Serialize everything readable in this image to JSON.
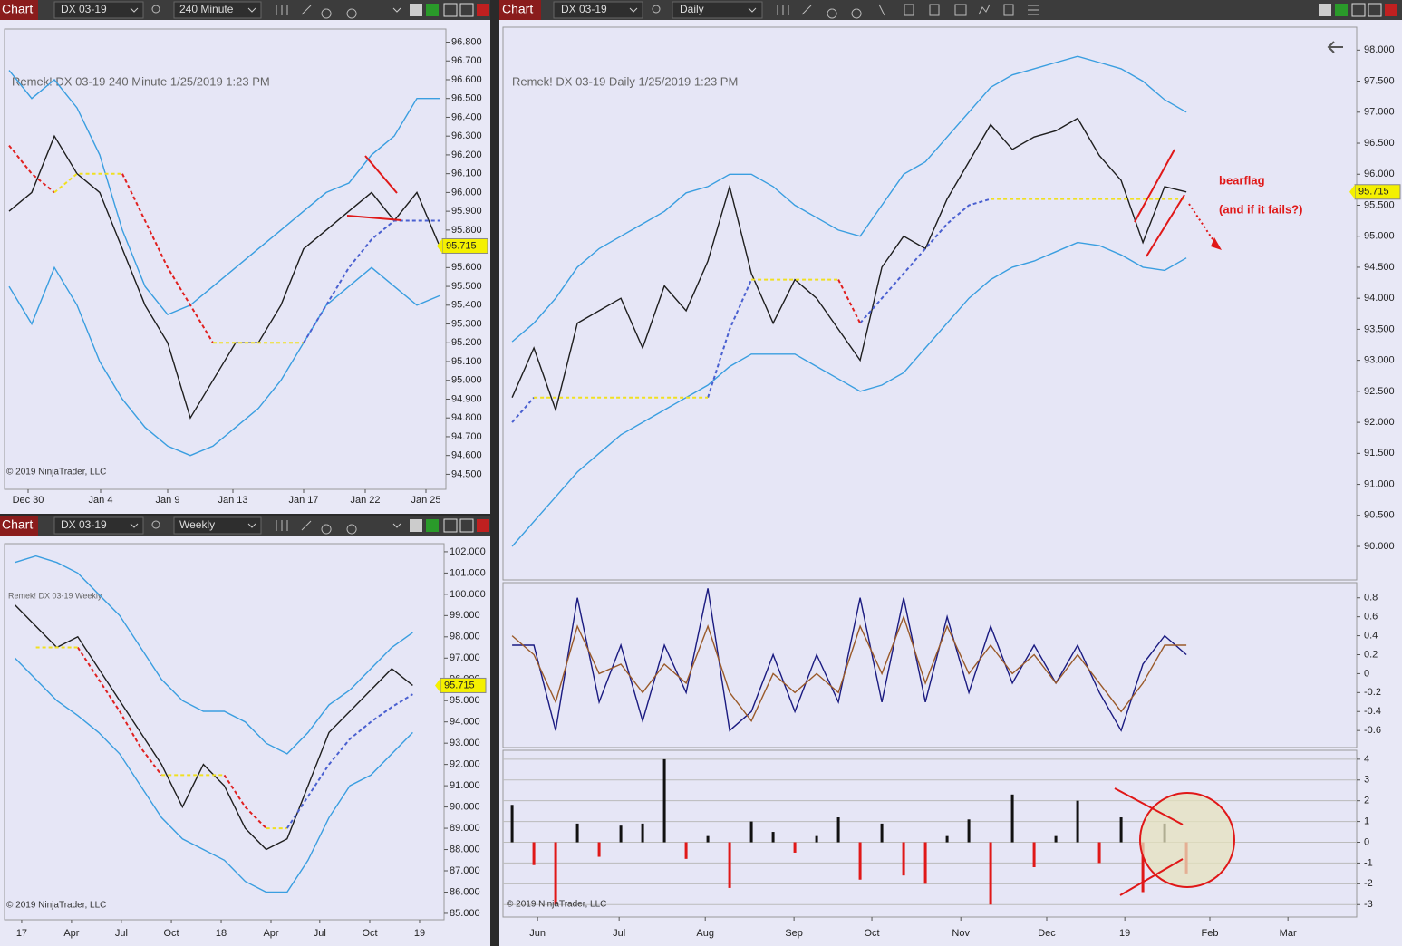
{
  "windows": [
    {
      "title": "Chart",
      "instrument": "DX 03-19",
      "interval": "240 Minute"
    },
    {
      "title": "Chart",
      "instrument": "DX 03-19",
      "interval": "Weekly"
    },
    {
      "title": "Chart",
      "instrument": "DX 03-19",
      "interval": "Daily"
    }
  ],
  "chart_data": [
    {
      "type": "line",
      "title": "Remek!  DX 03-19  240 Minute  1/25/2019 1:23 PM",
      "copyright": "© 2019 NinjaTrader, LLC",
      "xlim": [
        -0.2,
        19.28
      ],
      "ylim": [
        94.42,
        96.87
      ],
      "xticks": [
        {
          "value": 0.84,
          "label": "Dec 30"
        },
        {
          "value": 4.04,
          "label": "Jan 4"
        },
        {
          "value": 7,
          "label": "Jan 9"
        },
        {
          "value": 9.88,
          "label": "Jan 13"
        },
        {
          "value": 13,
          "label": "Jan 17"
        },
        {
          "value": 15.72,
          "label": "Jan 22"
        },
        {
          "value": 18.4,
          "label": "Jan 25"
        }
      ],
      "yticks": [
        {
          "value": 94.5,
          "label": "94.500"
        },
        {
          "value": 94.6,
          "label": "94.600"
        },
        {
          "value": 94.7,
          "label": "94.700"
        },
        {
          "value": 94.8,
          "label": "94.800"
        },
        {
          "value": 94.9,
          "label": "94.900"
        },
        {
          "value": 95.0,
          "label": "95.000"
        },
        {
          "value": 95.1,
          "label": "95.100"
        },
        {
          "value": 95.2,
          "label": "95.200"
        },
        {
          "value": 95.3,
          "label": "95.300"
        },
        {
          "value": 95.4,
          "label": "95.400"
        },
        {
          "value": 95.5,
          "label": "95.500"
        },
        {
          "value": 95.6,
          "label": "95.600"
        },
        {
          "value": 95.7,
          "label": "95.700"
        },
        {
          "value": 95.8,
          "label": "95.800"
        },
        {
          "value": 95.9,
          "label": "95.900"
        },
        {
          "value": 96.0,
          "label": "96.000"
        },
        {
          "value": 96.1,
          "label": "96.100"
        },
        {
          "value": 96.2,
          "label": "96.200"
        },
        {
          "value": 96.3,
          "label": "96.300"
        },
        {
          "value": 96.4,
          "label": "96.400"
        },
        {
          "value": 96.5,
          "label": "96.500"
        },
        {
          "value": 96.6,
          "label": "96.600"
        },
        {
          "value": 96.7,
          "label": "96.700"
        },
        {
          "value": 96.8,
          "label": "96.800"
        }
      ],
      "last_price": 95.715,
      "series": [
        {
          "color": "#1e1e1e",
          "values": [
            95.9,
            96.0,
            96.3,
            96.1,
            96.0,
            95.7,
            95.4,
            95.2,
            94.8,
            95.0,
            95.2,
            95.2,
            95.4,
            95.7,
            95.8,
            95.9,
            96.0,
            95.85,
            96.0,
            95.715
          ]
        },
        {
          "color": "#3a9ee0",
          "values": [
            96.65,
            96.5,
            96.6,
            96.45,
            96.2,
            95.8,
            95.5,
            95.35,
            95.4,
            95.5,
            95.6,
            95.7,
            95.8,
            95.9,
            96.0,
            96.05,
            96.2,
            96.3,
            96.5,
            96.5
          ]
        },
        {
          "color": "#3a9ee0",
          "values": [
            95.5,
            95.3,
            95.6,
            95.4,
            95.1,
            94.9,
            94.75,
            94.65,
            94.6,
            94.65,
            94.75,
            94.85,
            95.0,
            95.2,
            95.4,
            95.5,
            95.6,
            95.5,
            95.4,
            95.45
          ]
        },
        {
          "color": "#e02020",
          "dash": true,
          "values": [
            96.25,
            96.1,
            96.0,
            null,
            null,
            96.1,
            95.85,
            95.6,
            95.4,
            95.2,
            null,
            null,
            null,
            null,
            null,
            null,
            null,
            null,
            null,
            null
          ]
        },
        {
          "color": "#f0e020",
          "dash": true,
          "values": [
            null,
            null,
            96.0,
            96.1,
            96.1,
            96.1,
            null,
            null,
            null,
            95.2,
            95.2,
            95.2,
            95.2,
            95.2,
            null,
            null,
            null,
            null,
            null,
            null
          ]
        },
        {
          "color": "#4a60d0",
          "dash": true,
          "values": [
            null,
            null,
            null,
            null,
            null,
            null,
            null,
            null,
            null,
            null,
            null,
            null,
            null,
            95.2,
            95.4,
            95.6,
            95.75,
            95.85,
            95.85,
            95.85
          ]
        }
      ]
    },
    {
      "type": "line",
      "title": "Remek!  DX 03-19  Weekly",
      "copyright": "© 2019 NinjaTrader, LLC",
      "xlim": [
        -0.5,
        20.5
      ],
      "ylim": [
        84.7,
        102.38
      ],
      "xticks": [
        {
          "value": 0.32,
          "label": "17"
        },
        {
          "value": 2.7,
          "label": "Apr"
        },
        {
          "value": 5.08,
          "label": "Jul"
        },
        {
          "value": 7.47,
          "label": "Oct"
        },
        {
          "value": 9.85,
          "label": "18"
        },
        {
          "value": 12.23,
          "label": "Apr"
        },
        {
          "value": 14.56,
          "label": "Jul"
        },
        {
          "value": 16.95,
          "label": "Oct"
        },
        {
          "value": 19.33,
          "label": "19"
        }
      ],
      "yticks": [
        {
          "value": 85,
          "label": "85.000"
        },
        {
          "value": 86,
          "label": "86.000"
        },
        {
          "value": 87,
          "label": "87.000"
        },
        {
          "value": 88,
          "label": "88.000"
        },
        {
          "value": 89,
          "label": "89.000"
        },
        {
          "value": 90,
          "label": "90.000"
        },
        {
          "value": 91,
          "label": "91.000"
        },
        {
          "value": 92,
          "label": "92.000"
        },
        {
          "value": 93,
          "label": "93.000"
        },
        {
          "value": 94,
          "label": "94.000"
        },
        {
          "value": 95,
          "label": "95.000"
        },
        {
          "value": 96,
          "label": "96.000"
        },
        {
          "value": 97,
          "label": "97.000"
        },
        {
          "value": 98,
          "label": "98.000"
        },
        {
          "value": 99,
          "label": "99.000"
        },
        {
          "value": 100,
          "label": "100.000"
        },
        {
          "value": 101,
          "label": "101.000"
        },
        {
          "value": 102,
          "label": "102.000"
        }
      ],
      "last_price": 95.715,
      "series": [
        {
          "color": "#1e1e1e",
          "values": [
            99.5,
            98.5,
            97.5,
            98.0,
            96.5,
            95.0,
            93.5,
            92.0,
            90.0,
            92.0,
            91.0,
            89.0,
            88.0,
            88.5,
            91.0,
            93.5,
            94.5,
            95.5,
            96.5,
            95.715
          ]
        },
        {
          "color": "#3a9ee0",
          "values": [
            101.5,
            101.8,
            101.5,
            101.0,
            100.0,
            99.0,
            97.5,
            96.0,
            95.0,
            94.5,
            94.5,
            94.0,
            93.0,
            92.5,
            93.5,
            94.8,
            95.5,
            96.5,
            97.5,
            98.2
          ]
        },
        {
          "color": "#3a9ee0",
          "values": [
            97.0,
            96.0,
            95.0,
            94.3,
            93.5,
            92.5,
            91.0,
            89.5,
            88.5,
            88.0,
            87.5,
            86.5,
            86.0,
            86.0,
            87.5,
            89.5,
            91.0,
            91.5,
            92.5,
            93.5
          ]
        },
        {
          "color": "#e02020",
          "dash": true,
          "values": [
            null,
            null,
            null,
            97.5,
            96.0,
            94.5,
            92.8,
            91.5,
            null,
            null,
            91.5,
            90.0,
            89.0,
            null,
            null,
            null,
            null,
            null,
            null,
            null
          ]
        },
        {
          "color": "#f0e020",
          "dash": true,
          "values": [
            null,
            97.5,
            97.5,
            97.5,
            null,
            null,
            null,
            91.5,
            91.5,
            91.5,
            91.5,
            null,
            89.0,
            89.0,
            null,
            null,
            null,
            null,
            null,
            null
          ]
        },
        {
          "color": "#4a60d0",
          "dash": true,
          "values": [
            null,
            null,
            null,
            null,
            null,
            null,
            null,
            null,
            null,
            null,
            null,
            null,
            null,
            89.0,
            90.5,
            92.0,
            93.2,
            94.0,
            94.7,
            95.3
          ]
        }
      ]
    },
    {
      "type": "line",
      "title": "Remek!  DX 03-19  Daily  1/25/2019 1:23 PM",
      "xlim": [
        -0.42,
        38.83
      ],
      "ylim": [
        89.46,
        98.37
      ],
      "yticks": [
        {
          "value": 90,
          "label": "90.000"
        },
        {
          "value": 90.5,
          "label": "90.500"
        },
        {
          "value": 91,
          "label": "91.000"
        },
        {
          "value": 91.5,
          "label": "91.500"
        },
        {
          "value": 92,
          "label": "92.000"
        },
        {
          "value": 92.5,
          "label": "92.500"
        },
        {
          "value": 93,
          "label": "93.000"
        },
        {
          "value": 93.5,
          "label": "93.500"
        },
        {
          "value": 94,
          "label": "94.000"
        },
        {
          "value": 94.5,
          "label": "94.500"
        },
        {
          "value": 95,
          "label": "95.000"
        },
        {
          "value": 95.5,
          "label": "95.500"
        },
        {
          "value": 96,
          "label": "96.000"
        },
        {
          "value": 96.5,
          "label": "96.500"
        },
        {
          "value": 97,
          "label": "97.000"
        },
        {
          "value": 97.5,
          "label": "97.500"
        },
        {
          "value": 98,
          "label": "98.000"
        }
      ],
      "last_price": 95.715,
      "annotations": [
        "bearflag",
        "(and if it fails?)"
      ],
      "series": [
        {
          "color": "#1e1e1e",
          "values": [
            92.4,
            93.2,
            92.2,
            93.6,
            93.8,
            94.0,
            93.2,
            94.2,
            93.8,
            94.6,
            95.8,
            94.4,
            93.6,
            94.3,
            94.0,
            93.5,
            93.0,
            94.5,
            95.0,
            94.8,
            95.6,
            96.2,
            96.8,
            96.4,
            96.6,
            96.7,
            96.9,
            96.3,
            95.9,
            94.9,
            95.8,
            95.715
          ]
        },
        {
          "color": "#3a9ee0",
          "values": [
            93.3,
            93.6,
            94.0,
            94.5,
            94.8,
            95.0,
            95.2,
            95.4,
            95.7,
            95.8,
            96.0,
            96.0,
            95.8,
            95.5,
            95.3,
            95.1,
            95.0,
            95.5,
            96.0,
            96.2,
            96.6,
            97.0,
            97.4,
            97.6,
            97.7,
            97.8,
            97.9,
            97.8,
            97.7,
            97.5,
            97.2,
            97.0
          ]
        },
        {
          "color": "#3a9ee0",
          "values": [
            90.0,
            90.4,
            90.8,
            91.2,
            91.5,
            91.8,
            92.0,
            92.2,
            92.4,
            92.6,
            92.9,
            93.1,
            93.1,
            93.1,
            92.9,
            92.7,
            92.5,
            92.6,
            92.8,
            93.2,
            93.6,
            94.0,
            94.3,
            94.5,
            94.6,
            94.75,
            94.9,
            94.85,
            94.7,
            94.5,
            94.45,
            94.65
          ]
        },
        {
          "color": "#4a60d0",
          "dash": true,
          "values": [
            92.0,
            92.4,
            null,
            null,
            null,
            null,
            null,
            null,
            null,
            92.4,
            93.5,
            94.3,
            null,
            null,
            null,
            null,
            93.6,
            94.0,
            94.4,
            94.8,
            95.2,
            95.5,
            95.6,
            null,
            null,
            null,
            null,
            null,
            null,
            null,
            null,
            null
          ]
        },
        {
          "color": "#f0e020",
          "dash": true,
          "values": [
            null,
            92.4,
            92.4,
            92.4,
            92.4,
            92.4,
            92.4,
            92.4,
            92.4,
            92.4,
            null,
            94.3,
            94.3,
            94.3,
            94.3,
            94.3,
            null,
            null,
            null,
            null,
            null,
            null,
            95.6,
            95.6,
            95.6,
            95.6,
            95.6,
            95.6,
            95.6,
            95.6,
            95.6,
            95.6
          ]
        },
        {
          "color": "#e02020",
          "dash": true,
          "values": [
            null,
            null,
            null,
            null,
            null,
            null,
            null,
            null,
            null,
            null,
            null,
            null,
            null,
            null,
            null,
            94.3,
            93.6,
            null,
            null,
            null,
            null,
            null,
            null,
            null,
            null,
            null,
            null,
            null,
            null,
            null,
            null,
            null
          ]
        }
      ]
    },
    {
      "type": "line",
      "xlim": [
        -0.42,
        38.83
      ],
      "ylim": [
        -0.78,
        0.96
      ],
      "yticks": [
        -0.6,
        -0.4,
        -0.2,
        0,
        0.2,
        0.4,
        0.6,
        0.8
      ],
      "series": [
        {
          "color": "#1a1a80",
          "values": [
            0.3,
            0.3,
            -0.6,
            0.8,
            -0.3,
            0.3,
            -0.5,
            0.3,
            -0.2,
            0.9,
            -0.6,
            -0.4,
            0.2,
            -0.4,
            0.2,
            -0.3,
            0.8,
            -0.3,
            0.8,
            -0.3,
            0.6,
            -0.2,
            0.5,
            -0.1,
            0.3,
            -0.1,
            0.3,
            -0.2,
            -0.6,
            0.1,
            0.4,
            0.2
          ]
        },
        {
          "color": "#9a5a2a",
          "values": [
            0.4,
            0.2,
            -0.3,
            0.5,
            0.0,
            0.1,
            -0.2,
            0.1,
            -0.1,
            0.5,
            -0.2,
            -0.5,
            0.0,
            -0.2,
            0.0,
            -0.2,
            0.5,
            0.0,
            0.6,
            -0.1,
            0.5,
            0.0,
            0.3,
            0.0,
            0.2,
            -0.1,
            0.2,
            -0.1,
            -0.4,
            -0.1,
            0.3,
            0.3
          ]
        }
      ]
    },
    {
      "type": "bar",
      "copyright": "© 2019 NinjaTrader, LLC",
      "xlim": [
        -0.42,
        38.83
      ],
      "ylim": [
        -3.6,
        4.43
      ],
      "grid": true,
      "color": "#111111",
      "negative_color": "#e01818",
      "xticks": [
        {
          "value": 1.17,
          "label": "Jun"
        },
        {
          "value": 4.92,
          "label": "Jul"
        },
        {
          "value": 8.88,
          "label": "Aug"
        },
        {
          "value": 12.96,
          "label": "Sep"
        },
        {
          "value": 16.54,
          "label": "Oct"
        },
        {
          "value": 20.63,
          "label": "Nov"
        },
        {
          "value": 24.58,
          "label": "Dec"
        },
        {
          "value": 28.17,
          "label": "19"
        },
        {
          "value": 32.08,
          "label": "Feb"
        },
        {
          "value": 35.67,
          "label": "Mar"
        }
      ],
      "yticks": [
        -3,
        -2,
        -1,
        0,
        1,
        2,
        3,
        4
      ],
      "values": [
        1.8,
        -1.1,
        -3,
        0.9,
        -0.7,
        0.8,
        0.9,
        4,
        -0.8,
        0.3,
        -2.2,
        1,
        0.5,
        -0.5,
        0.3,
        1.2,
        -1.8,
        0.9,
        -1.6,
        -2,
        0.3,
        1.1,
        -3,
        2.3,
        -1.2,
        0.3,
        2,
        -1,
        1.2,
        -2.4,
        0.9,
        -1.5
      ]
    }
  ]
}
